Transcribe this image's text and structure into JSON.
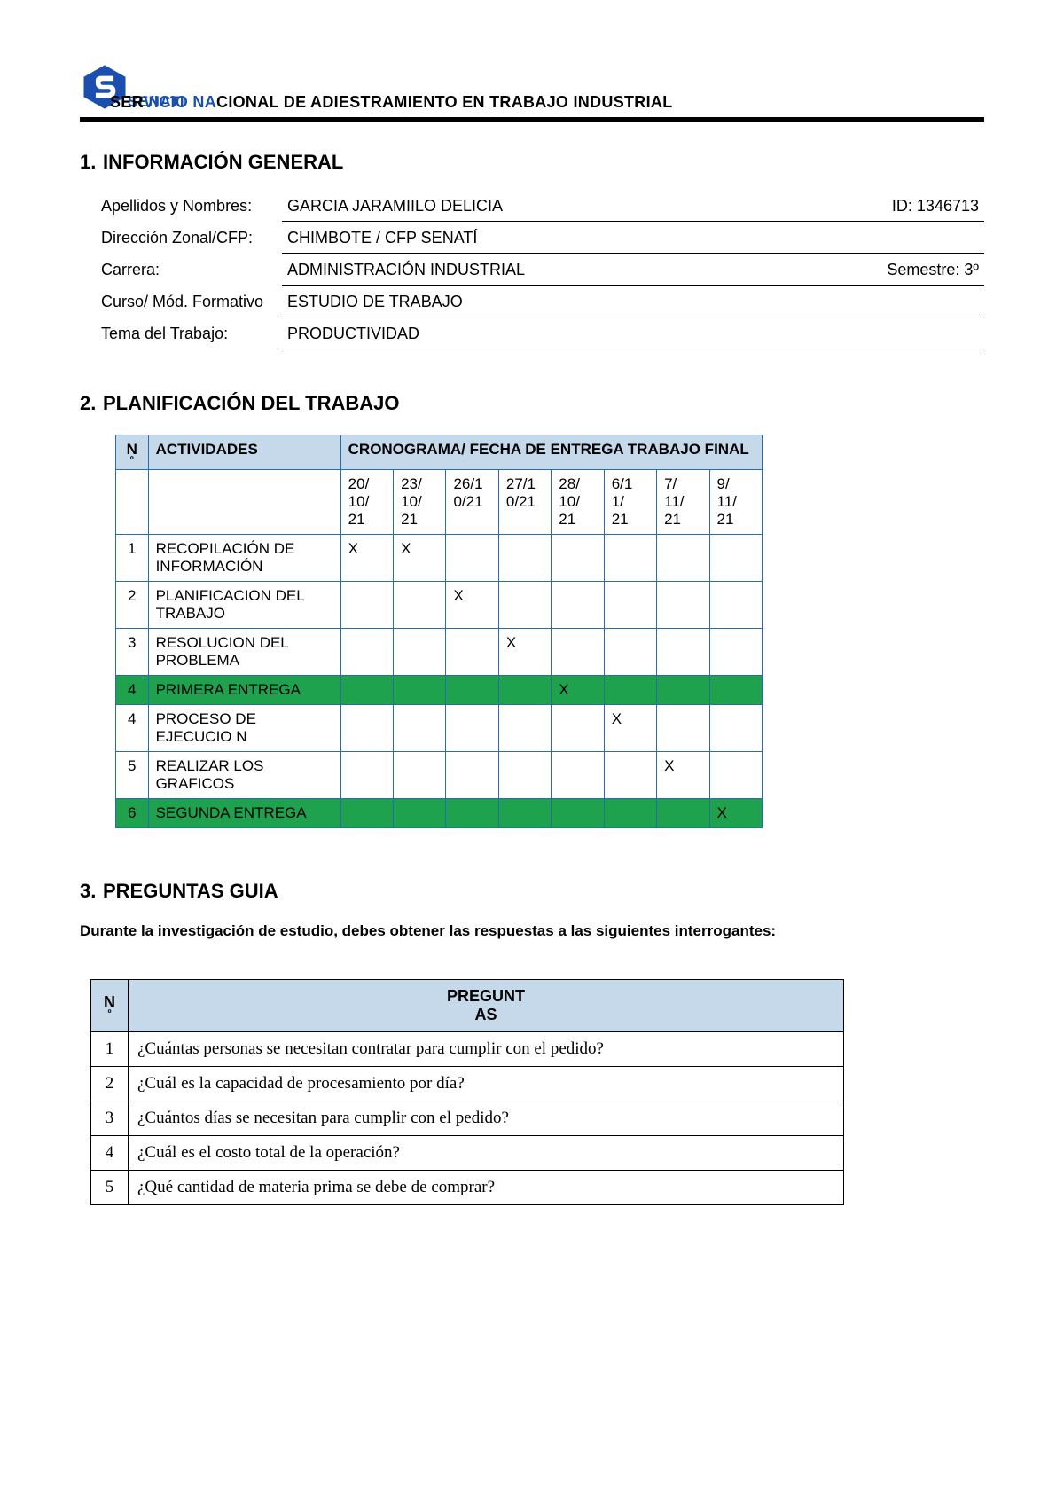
{
  "header": {
    "org_prefix": "SER",
    "org_mid": "VICIO NA",
    "org_rest": "CIONAL DE ADIESTRAMIENTO EN TRABAJO INDUSTRIAL",
    "senati_text": "SENATI",
    "logo_color": "#1a4fb0"
  },
  "section1": {
    "num": "1.",
    "title": "INFORMACIÓN GENERAL",
    "rows": [
      {
        "label": "Apellidos y Nombres:",
        "value": "GARCIA JARAMIILO DELICIA",
        "extra_label": "ID:",
        "extra_value": "1346713"
      },
      {
        "label": "Dirección Zonal/CFP:",
        "value": "CHIMBOTE / CFP SENATÍ",
        "extra_label": "",
        "extra_value": ""
      },
      {
        "label": "Carrera:",
        "value": "ADMINISTRACIÓN INDUSTRIAL",
        "extra_label": "Semestre:",
        "extra_value": "3º"
      },
      {
        "label": "Curso/ Mód. Formativo",
        "value": "ESTUDIO DE TRABAJO",
        "extra_label": "",
        "extra_value": ""
      },
      {
        "label": "Tema del Trabajo:",
        "value": "PRODUCTIVIDAD",
        "extra_label": "",
        "extra_value": ""
      }
    ]
  },
  "section2": {
    "num": "2.",
    "title": "PLANIFICACIÓN DEL TRABAJO",
    "header_n": "N",
    "header_n_sub": "º",
    "header_act": "ACTIVIDADES",
    "header_cron": "CRONOGRAMA/ FECHA DE ENTREGA TRABAJO FINAL",
    "dates": [
      "20/10/21",
      "23/10/21",
      "26/10/21",
      "27/10/21",
      "28/10/21",
      "6/11/21",
      "7/11/21",
      "9/11/21"
    ],
    "dates_display": [
      [
        "20/",
        "10/",
        "21"
      ],
      [
        "23/",
        "10/",
        "21"
      ],
      [
        "26/1",
        "0/21",
        ""
      ],
      [
        "27/1",
        "0/21",
        ""
      ],
      [
        "28/",
        "10/",
        "21"
      ],
      [
        "6/1",
        "1/",
        "21"
      ],
      [
        "7/",
        "11/",
        "21"
      ],
      [
        "9/",
        "11/",
        "21"
      ]
    ],
    "rows": [
      {
        "n": "1",
        "act": "RECOPILACIÓN DE INFORMACIÓN",
        "marks": [
          "X",
          "X",
          "",
          "",
          "",
          "",
          "",
          ""
        ],
        "green": false
      },
      {
        "n": "2",
        "act": "PLANIFICACION DEL TRABAJO",
        "marks": [
          "",
          "",
          "X",
          "",
          "",
          "",
          "",
          ""
        ],
        "green": false
      },
      {
        "n": "3",
        "act": "RESOLUCION DEL PROBLEMA",
        "marks": [
          "",
          "",
          "",
          "X",
          "",
          "",
          "",
          ""
        ],
        "green": false
      },
      {
        "n": "4",
        "act": "PRIMERA ENTREGA",
        "marks": [
          "",
          "",
          "",
          "",
          "X",
          "",
          "",
          ""
        ],
        "green": true
      },
      {
        "n": "4",
        "act": "PROCESO DE EJECUCIO N",
        "marks": [
          "",
          "",
          "",
          "",
          "",
          "X",
          "",
          ""
        ],
        "green": false
      },
      {
        "n": "5",
        "act": "REALIZAR LOS GRAFICOS",
        "marks": [
          "",
          "",
          "",
          "",
          "",
          "",
          "X",
          ""
        ],
        "green": false
      },
      {
        "n": "6",
        "act": "SEGUNDA ENTREGA",
        "marks": [
          "",
          "",
          "",
          "",
          "",
          "",
          "",
          "X"
        ],
        "green": true
      }
    ],
    "colors": {
      "header_bg": "#c5d9ea",
      "border": "#2a6ca3",
      "green": "#1fa24e"
    }
  },
  "section3": {
    "num": "3.",
    "title": "PREGUNTAS GUIA",
    "intro": "Durante la investigación de estudio, debes obtener las respuestas a las siguientes interrogantes:",
    "header_n": "N",
    "header_n_sub": "º",
    "header_q1": "PREGUNT",
    "header_q2": "AS",
    "questions": [
      {
        "n": "1",
        "q": "¿Cuántas personas se necesitan contratar para cumplir con el pedido?"
      },
      {
        "n": "2",
        "q": "¿Cuál es la capacidad de procesamiento por día?"
      },
      {
        "n": "3",
        "q": "¿Cuántos días se necesitan para cumplir con el pedido?"
      },
      {
        "n": "4",
        "q": "¿Cuál es el costo total de la operación?"
      },
      {
        "n": "5",
        "q": "¿Qué cantidad de materia prima se debe de comprar?"
      }
    ]
  }
}
